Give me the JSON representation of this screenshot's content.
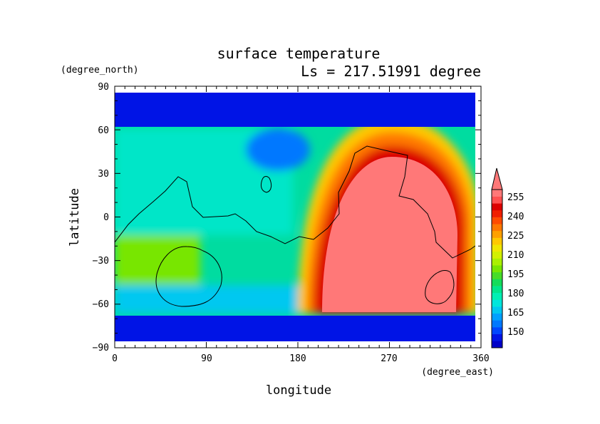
{
  "chart_data": {
    "type": "heatmap",
    "title": "surface temperature",
    "subtitle": "Ls = 217.51991 degree",
    "xlabel": "longitude",
    "ylabel": "latitude",
    "x_unit": "(degree_east)",
    "y_unit": "(degree_north)",
    "xlim": [
      0,
      360
    ],
    "ylim": [
      -90,
      90
    ],
    "x_ticks": [
      "0",
      "90",
      "180",
      "270",
      "360"
    ],
    "y_ticks": [
      "90",
      "60",
      "30",
      "0",
      "−30",
      "−60",
      "−90"
    ],
    "colorbar": {
      "labels": [
        "255",
        "240",
        "225",
        "210",
        "195",
        "180",
        "165",
        "150"
      ],
      "levels": [
        145,
        150,
        155,
        160,
        165,
        170,
        175,
        180,
        185,
        190,
        195,
        200,
        205,
        210,
        215,
        220,
        225,
        230,
        235,
        240,
        245,
        250,
        255,
        260
      ],
      "colors": [
        "#0000c8",
        "#0014e6",
        "#0046ff",
        "#0078ff",
        "#00a0ff",
        "#00c8f0",
        "#00e6dc",
        "#00f0b4",
        "#00e68c",
        "#14dc5a",
        "#46dc28",
        "#78e600",
        "#aaf000",
        "#d2f000",
        "#f0e600",
        "#ffc800",
        "#ffa000",
        "#ff7800",
        "#ff4b00",
        "#f01e00",
        "#dc0000",
        "#ff5050",
        "#ff7878"
      ],
      "over_color": "#ff7878"
    },
    "grid": false,
    "regions": [
      {
        "name": "polar-north",
        "lon_range": [
          0,
          360
        ],
        "lat_range": [
          62,
          85
        ],
        "approx_value": 148
      },
      {
        "name": "polar-south",
        "lon_range": [
          0,
          360
        ],
        "lat_range": [
          -85,
          -68
        ],
        "approx_value": 148
      },
      {
        "name": "western-hemisphere-mid",
        "lon_range": [
          0,
          200
        ],
        "lat_range": [
          -65,
          60
        ],
        "approx_value": 185
      },
      {
        "name": "eastern-warm-core",
        "lon_range": [
          220,
          340
        ],
        "lat_range": [
          -62,
          42
        ],
        "approx_value": 262
      }
    ]
  }
}
